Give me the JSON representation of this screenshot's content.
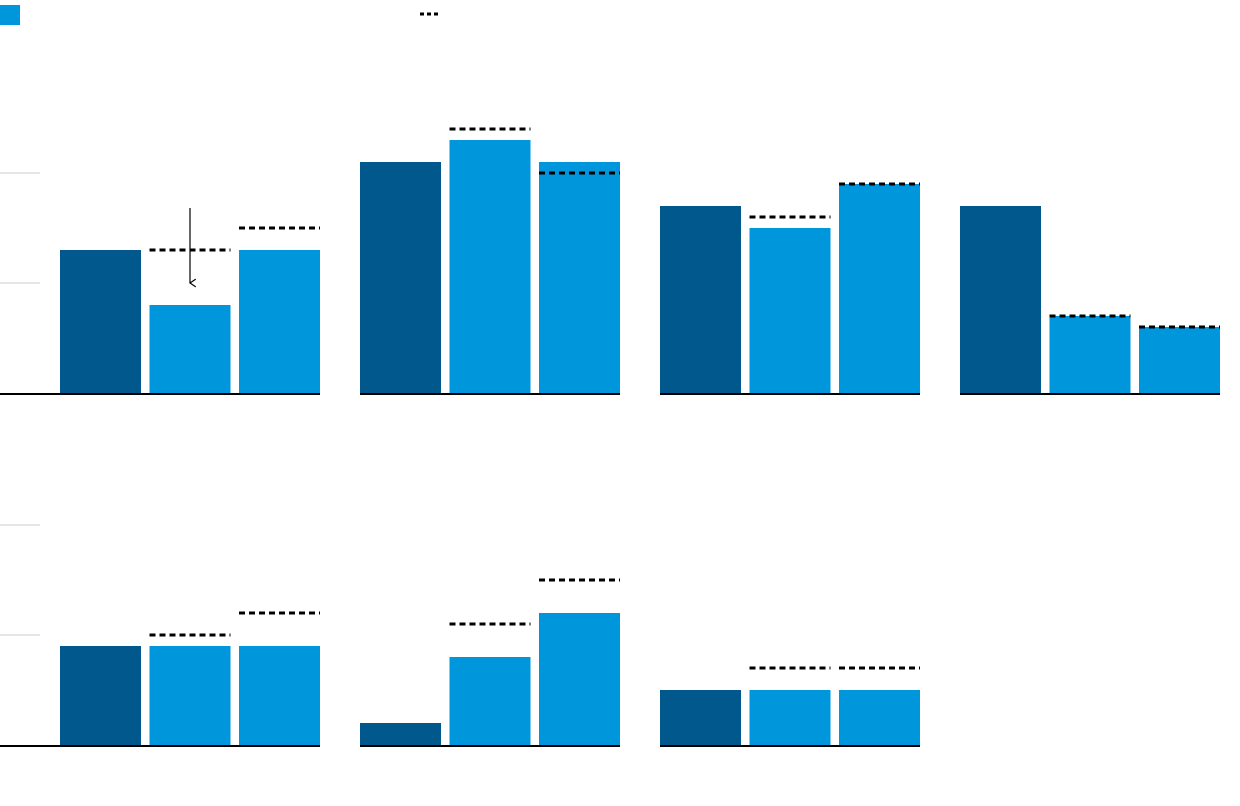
{
  "chart_data": {
    "type": "bar",
    "colors": [
      "#00588c",
      "#0096db"
    ],
    "target_color": "#000000",
    "ylim": [
      0,
      30
    ],
    "yticks": [
      0,
      10,
      20
    ],
    "grid": true,
    "rows": [
      [
        {
          "values": [
            13,
            8,
            13
          ],
          "targets": [
            null,
            13,
            15
          ]
        },
        {
          "values": [
            21,
            23,
            21
          ],
          "targets": [
            null,
            24,
            20
          ]
        },
        {
          "values": [
            17,
            15,
            19
          ],
          "targets": [
            null,
            16,
            19
          ]
        },
        {
          "values": [
            17,
            7,
            6
          ],
          "targets": [
            null,
            7,
            6
          ]
        }
      ],
      [
        {
          "values": [
            9,
            9,
            9
          ],
          "targets": [
            null,
            10,
            12
          ]
        },
        {
          "values": [
            2,
            8,
            12
          ],
          "targets": [
            null,
            11,
            15
          ]
        },
        {
          "values": [
            5,
            5,
            5
          ],
          "targets": [
            null,
            7,
            7
          ]
        }
      ]
    ]
  }
}
